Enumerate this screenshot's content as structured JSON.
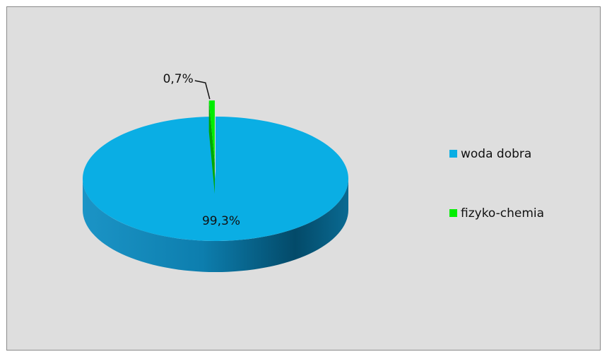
{
  "chart_data": {
    "type": "pie",
    "categories": [
      "woda dobra",
      "fizyko-chemia"
    ],
    "values": [
      99.3,
      0.7
    ],
    "value_labels": [
      "99,3%",
      "0,7%"
    ],
    "colors": [
      "#0aaee4",
      "#00ee00"
    ],
    "legend": "right"
  }
}
